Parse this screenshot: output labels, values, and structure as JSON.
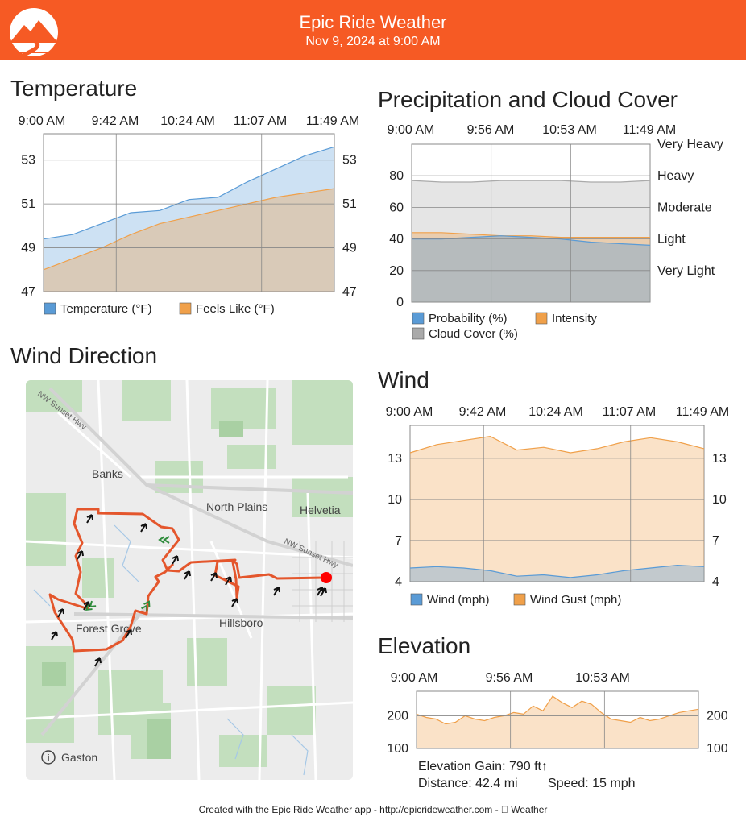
{
  "header": {
    "title": "Epic Ride Weather",
    "date": "Nov 9, 2024 at 9:00 AM",
    "color": "#f65a24"
  },
  "temperature": {
    "title": "Temperature",
    "times": [
      "9:00 AM",
      "9:42 AM",
      "10:24 AM",
      "11:07 AM",
      "11:49 AM"
    ],
    "legend": [
      "Temperature (°F)",
      "Feels Like (°F)"
    ],
    "chart_data": {
      "type": "area",
      "ylim": [
        47,
        54.2
      ],
      "yticks": [
        47,
        49,
        51,
        53
      ],
      "series": [
        {
          "name": "Temperature (°F)",
          "color": "#5a9bd6",
          "values": [
            49.4,
            49.6,
            50.1,
            50.6,
            50.7,
            51.2,
            51.3,
            52.0,
            52.6,
            53.2,
            53.6
          ]
        },
        {
          "name": "Feels Like (°F)",
          "color": "#f0a04a",
          "values": [
            48.0,
            48.5,
            49.0,
            49.6,
            50.1,
            50.4,
            50.7,
            51.0,
            51.3,
            51.5,
            51.7
          ]
        }
      ]
    }
  },
  "precipitation": {
    "title": "Precipitation and Cloud Cover",
    "times": [
      "9:00 AM",
      "9:56 AM",
      "10:53 AM",
      "11:49 AM"
    ],
    "legend": [
      "Probability (%)",
      "Intensity",
      "Cloud Cover (%)"
    ],
    "right_labels": [
      "Very Heavy",
      "Heavy",
      "Moderate",
      "Light",
      "Very Light"
    ],
    "chart_data": {
      "type": "area",
      "ylim": [
        0,
        100
      ],
      "yticks": [
        0,
        20,
        40,
        60,
        80
      ],
      "series": [
        {
          "name": "Cloud Cover (%)",
          "color": "#aaaaaa",
          "values": [
            77,
            76,
            76,
            77,
            77,
            77,
            76,
            76,
            77
          ]
        },
        {
          "name": "Intensity",
          "color": "#f0a04a",
          "values": [
            44,
            44,
            43,
            42,
            42,
            41,
            41,
            41,
            41
          ]
        },
        {
          "name": "Probability (%)",
          "color": "#5a9bd6",
          "values": [
            40,
            40,
            41,
            42,
            41,
            40,
            38,
            37,
            36
          ]
        }
      ]
    }
  },
  "wind": {
    "title": "Wind",
    "times": [
      "9:00 AM",
      "9:42 AM",
      "10:24 AM",
      "11:07 AM",
      "11:49 AM"
    ],
    "legend": [
      "Wind (mph)",
      "Wind Gust (mph)"
    ],
    "chart_data": {
      "type": "area",
      "ylim": [
        4,
        15.4
      ],
      "yticks": [
        4,
        7,
        10,
        13
      ],
      "series": [
        {
          "name": "Wind Gust (mph)",
          "color": "#f0a04a",
          "values": [
            13.4,
            14.0,
            14.3,
            14.6,
            13.6,
            13.8,
            13.4,
            13.7,
            14.2,
            14.5,
            14.2,
            13.7
          ]
        },
        {
          "name": "Wind (mph)",
          "color": "#5a9bd6",
          "values": [
            5.0,
            5.1,
            5.0,
            4.8,
            4.4,
            4.5,
            4.3,
            4.5,
            4.8,
            5.0,
            5.2,
            5.1
          ]
        }
      ]
    }
  },
  "elevation": {
    "title": "Elevation",
    "times": [
      "9:00 AM",
      "9:56 AM",
      "10:53 AM"
    ],
    "chart_data": {
      "type": "area",
      "ylim": [
        100,
        275
      ],
      "yticks": [
        100,
        200
      ],
      "series": [
        {
          "name": "",
          "color": "#f0a04a",
          "values": [
            205,
            195,
            190,
            175,
            180,
            200,
            190,
            185,
            195,
            200,
            210,
            205,
            230,
            215,
            260,
            240,
            225,
            245,
            235,
            210,
            190,
            185,
            180,
            195,
            185,
            190,
            200,
            210,
            215,
            220
          ]
        }
      ]
    },
    "gain_text": "Elevation Gain: 790 ft↑",
    "distance_text": "Distance: 42.4 mi",
    "speed_text": "Speed: 15 mph"
  },
  "map": {
    "title": "Wind Direction",
    "places": [
      "Banks",
      "North Plains",
      "Helvetia",
      "Forest Grove",
      "Hillsboro",
      "Gaston"
    ],
    "roads": [
      "NW Sunset Hwy",
      "NW Sunset Hwy"
    ],
    "info_icon": "info-icon",
    "route_color": "#e4562c"
  },
  "footer": {
    "text": "Created with the Epic Ride Weather app - http://epicrideweather.com -  Weather"
  }
}
